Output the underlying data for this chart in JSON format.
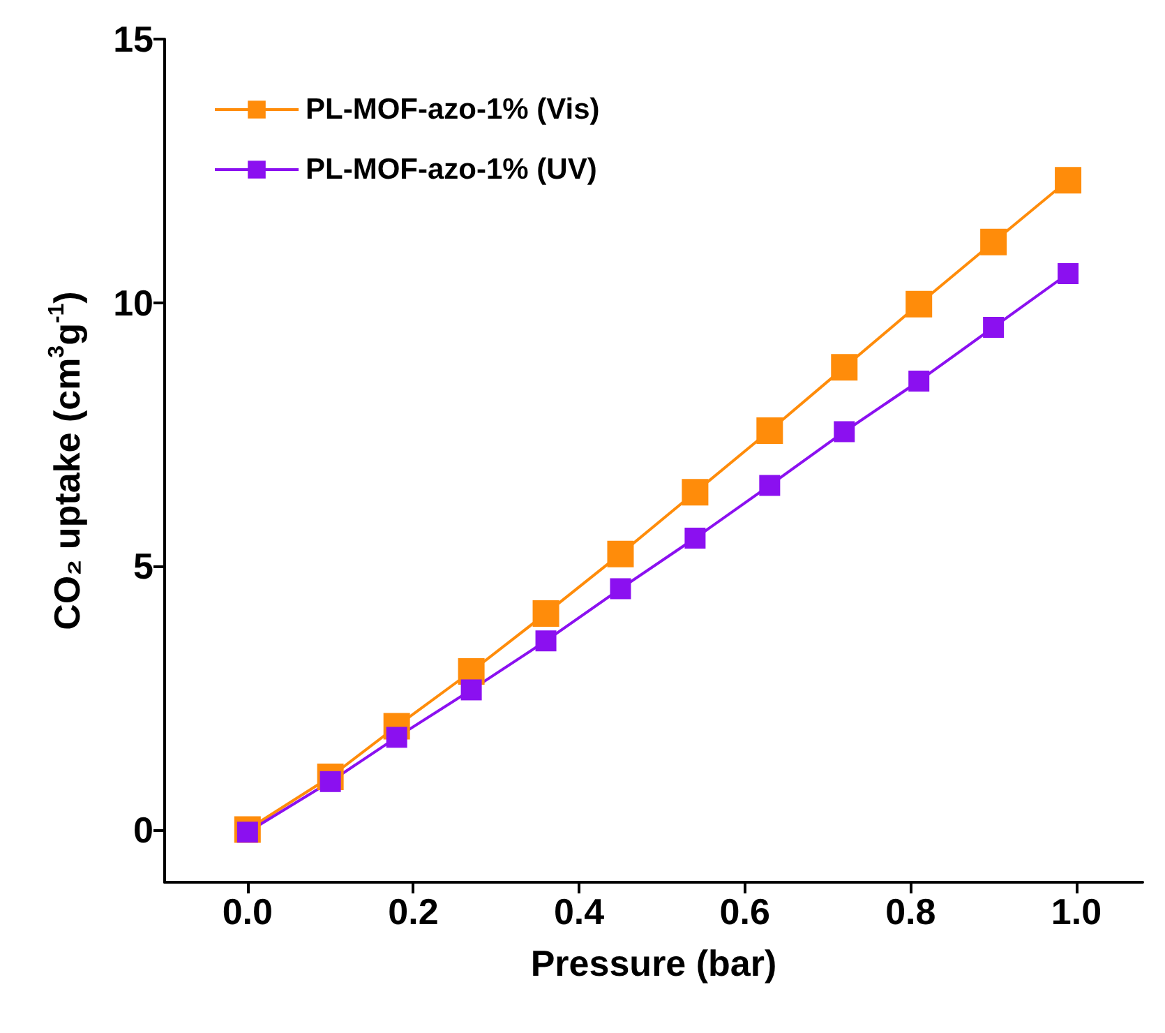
{
  "chart_data": {
    "type": "line",
    "xlabel": "Pressure (bar)",
    "ylabel": "CO₂ uptake (cm$^{3}$g$^{-1}$)",
    "xlim": [
      -0.1,
      1.08
    ],
    "ylim": [
      -1,
      15
    ],
    "xticks": [
      {
        "value": 0,
        "label": "0.0"
      },
      {
        "value": 0.2,
        "label": "0.2"
      },
      {
        "value": 0.4,
        "label": "0.4"
      },
      {
        "value": 0.6,
        "label": "0.6"
      },
      {
        "value": 0.8,
        "label": "0.8"
      },
      {
        "value": 1,
        "label": "1.0"
      }
    ],
    "yticks": [
      0,
      5,
      10,
      15
    ],
    "x": [
      0,
      0.1,
      0.18,
      0.27,
      0.36,
      0.45,
      0.54,
      0.63,
      0.72,
      0.81,
      0.9,
      0.99
    ],
    "series": [
      {
        "name": "PL-MOF-azo-1% (Vis)",
        "color": "#ff8c0a",
        "values": [
          0,
          1.0,
          1.96,
          3.0,
          4.1,
          5.23,
          6.4,
          7.57,
          8.77,
          9.97,
          11.15,
          12.32
        ]
      },
      {
        "name": "PL-MOF-azo-1% (UV)",
        "color": "#8b10f0",
        "values": [
          -0.05,
          0.91,
          1.75,
          2.65,
          3.58,
          4.57,
          5.53,
          6.53,
          7.55,
          8.51,
          9.53,
          10.55
        ]
      }
    ],
    "legend": "top left",
    "marker": "square",
    "line_style": "solid",
    "grid": false
  }
}
